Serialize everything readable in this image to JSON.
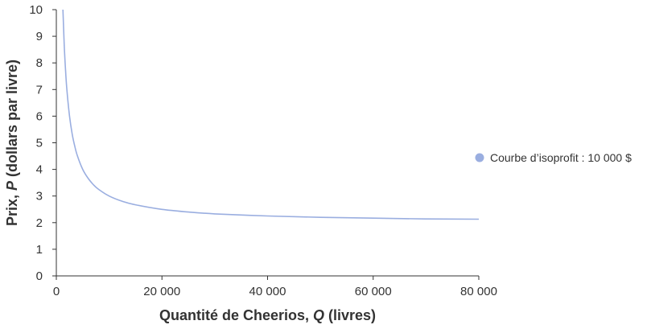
{
  "chart_data": {
    "type": "line",
    "title": "",
    "xlabel_parts": [
      "Quantité de Cheerios, ",
      "Q",
      " (livres)"
    ],
    "ylabel_parts": [
      "Prix, ",
      "P",
      " (dollars par livre)"
    ],
    "xlim": [
      0,
      80000
    ],
    "ylim": [
      0,
      10
    ],
    "x_ticks": [
      0,
      20000,
      40000,
      60000,
      80000
    ],
    "x_tick_labels": [
      "0",
      "20 000",
      "40 000",
      "60 000",
      "80 000"
    ],
    "y_ticks": [
      0,
      1,
      2,
      3,
      4,
      5,
      6,
      7,
      8,
      9,
      10
    ],
    "y_tick_labels": [
      "0",
      "1",
      "2",
      "3",
      "4",
      "5",
      "6",
      "7",
      "8",
      "9",
      "10"
    ],
    "grid": false,
    "legend_position": "right",
    "series": [
      {
        "name": "Courbe d’isoprofit : 10 000 $",
        "color": "#9aaee0",
        "x": [
          1250,
          1500,
          1750,
          2000,
          2500,
          3000,
          3500,
          4000,
          5000,
          6000,
          7000,
          8000,
          10000,
          12500,
          15000,
          20000,
          25000,
          30000,
          40000,
          50000,
          60000,
          70000,
          80000
        ],
        "y": [
          10.0,
          8.67,
          7.71,
          7.0,
          6.0,
          5.33,
          4.86,
          4.5,
          4.0,
          3.67,
          3.43,
          3.25,
          3.0,
          2.8,
          2.67,
          2.5,
          2.4,
          2.33,
          2.25,
          2.2,
          2.17,
          2.14,
          2.13
        ]
      }
    ]
  }
}
